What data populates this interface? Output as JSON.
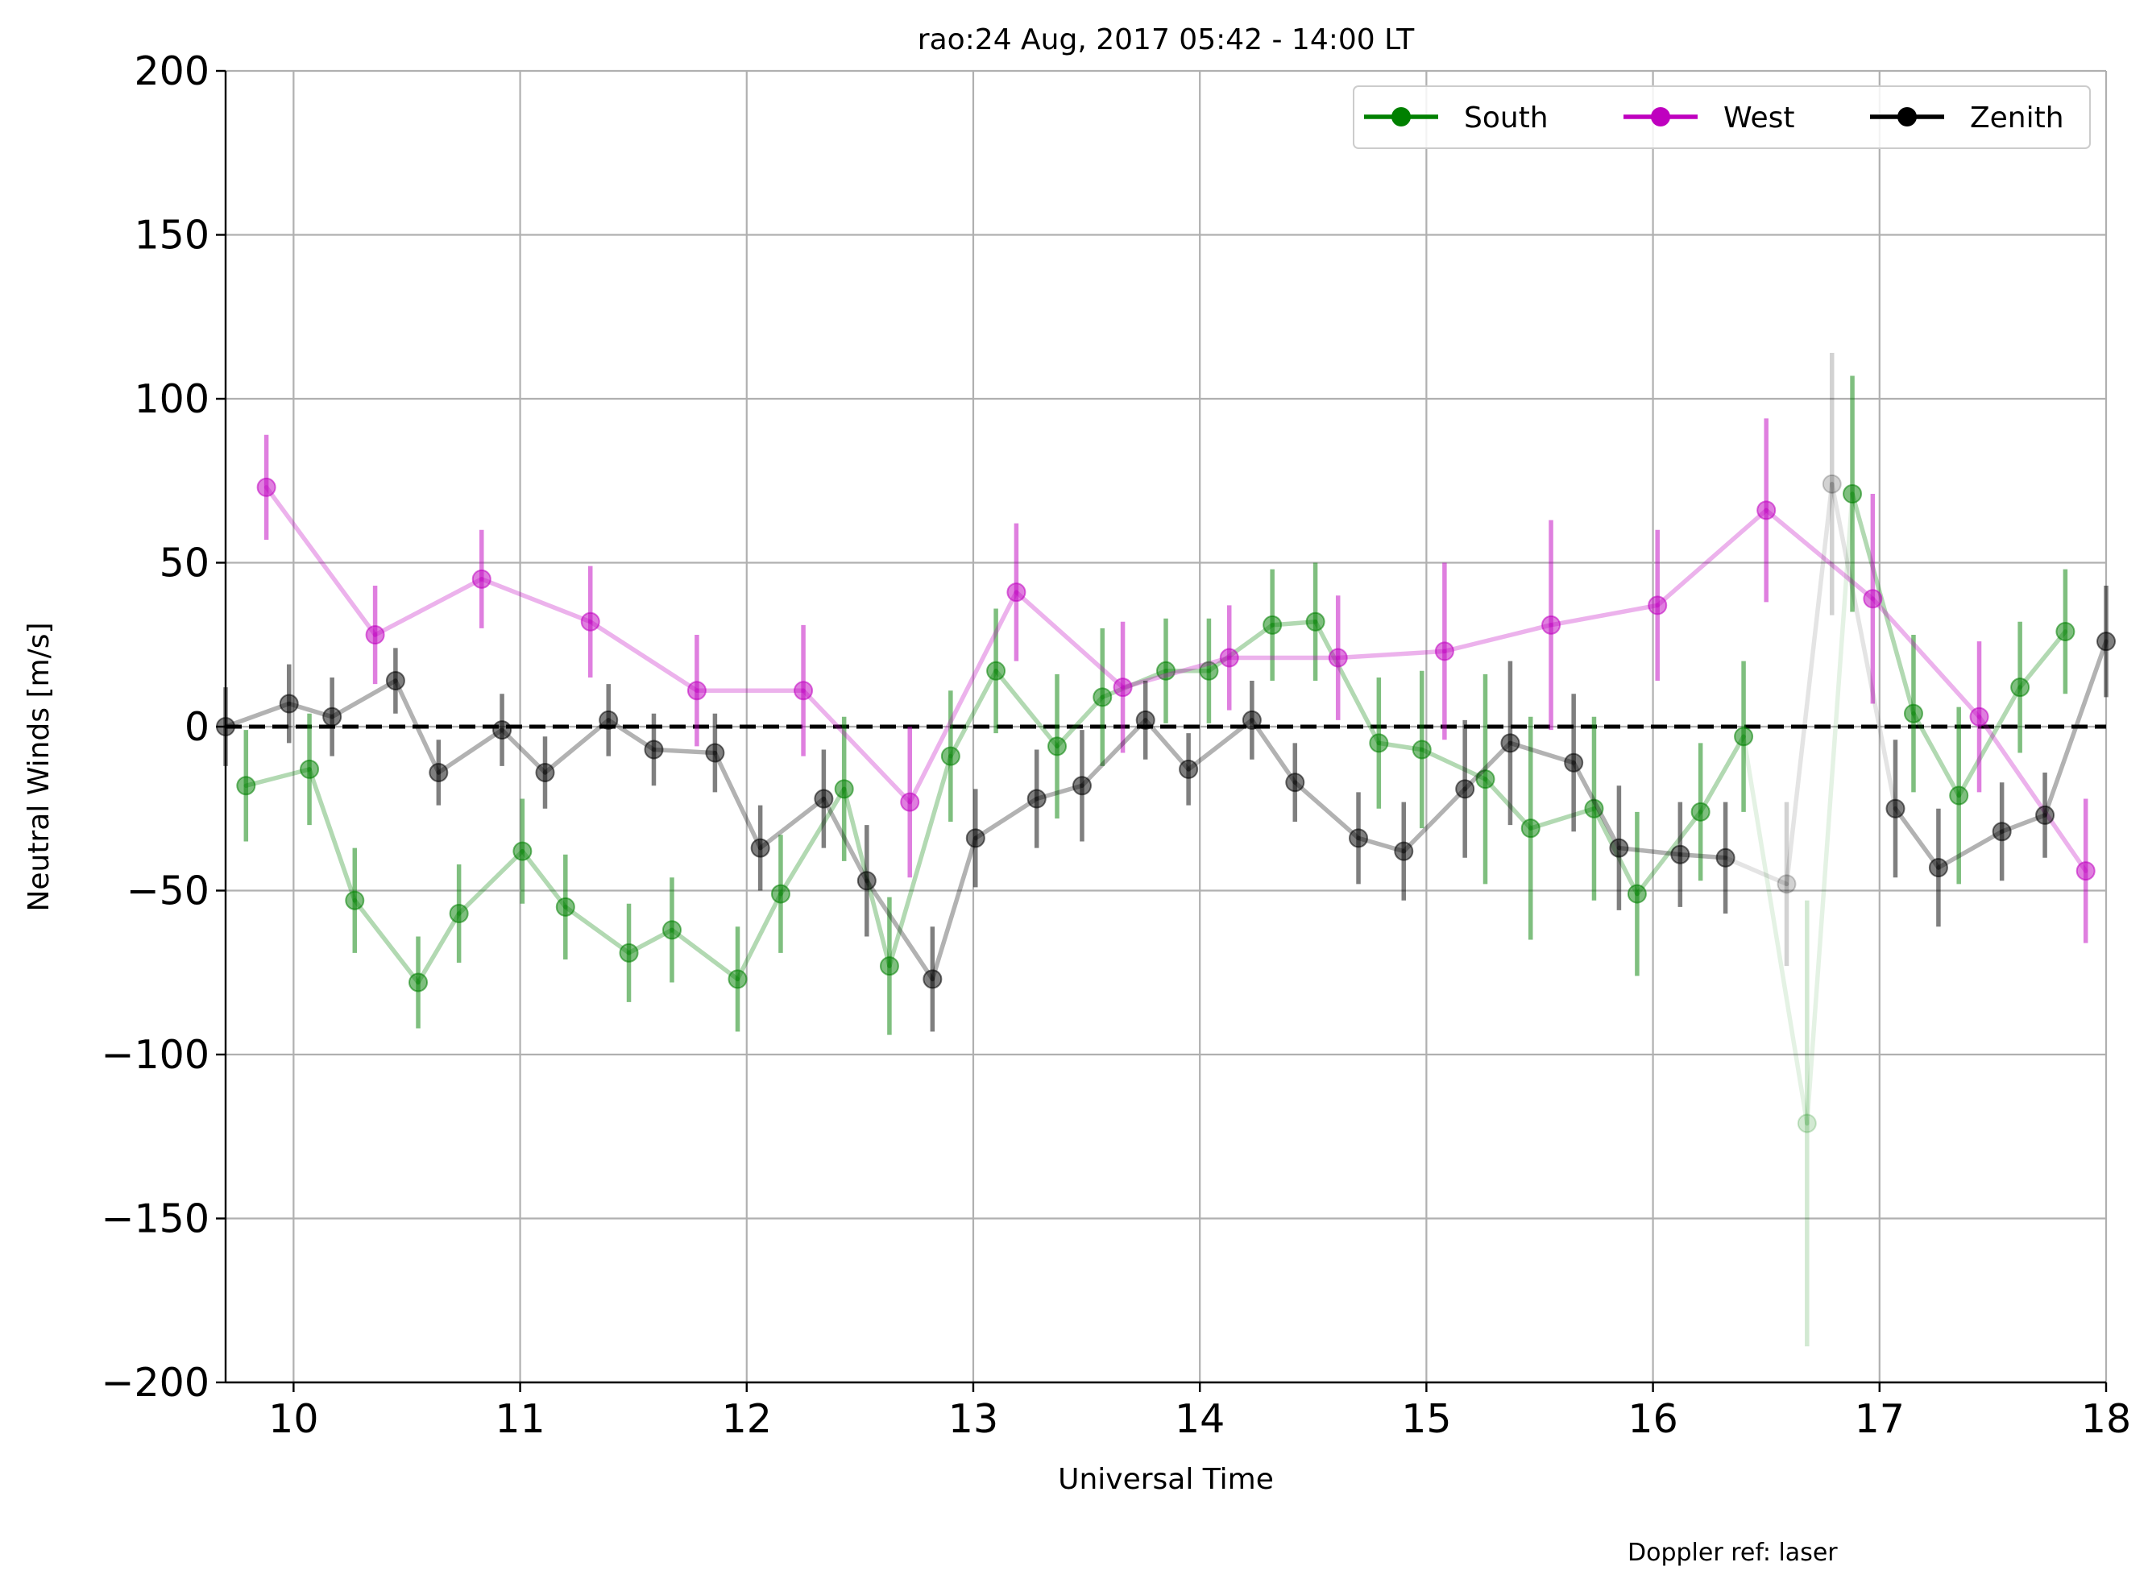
{
  "chart_data": {
    "type": "line",
    "title": "rao:24 Aug, 2017 05:42 - 14:00 LT",
    "xlabel": "Universal Time",
    "ylabel": "Neutral Winds [m/s]",
    "xlim": [
      9.7,
      18.0
    ],
    "ylim": [
      -200,
      200
    ],
    "xticks": [
      10,
      11,
      12,
      13,
      14,
      15,
      16,
      17,
      18
    ],
    "yticks": [
      -200,
      -150,
      -100,
      -50,
      0,
      50,
      100,
      150,
      200
    ],
    "ytick_labels": [
      "−200",
      "−150",
      "−100",
      "−50",
      "0",
      "50",
      "100",
      "150",
      "200"
    ],
    "grid": true,
    "legend_position": "top-right",
    "reference_line": {
      "y": 0,
      "style": "dashed",
      "color": "#000000"
    },
    "footnote": "Doppler ref: laser",
    "series": [
      {
        "name": "South",
        "color": "#008000",
        "points": [
          {
            "x": 9.79,
            "y": -18,
            "err": 17,
            "alpha": 1
          },
          {
            "x": 10.07,
            "y": -13,
            "err": 17,
            "alpha": 1
          },
          {
            "x": 10.27,
            "y": -53,
            "err": 16,
            "alpha": 1
          },
          {
            "x": 10.55,
            "y": -78,
            "err": 14,
            "alpha": 1
          },
          {
            "x": 10.73,
            "y": -57,
            "err": 15,
            "alpha": 1
          },
          {
            "x": 11.01,
            "y": -38,
            "err": 16,
            "alpha": 1
          },
          {
            "x": 11.2,
            "y": -55,
            "err": 16,
            "alpha": 1
          },
          {
            "x": 11.48,
            "y": -69,
            "err": 15,
            "alpha": 1
          },
          {
            "x": 11.67,
            "y": -62,
            "err": 16,
            "alpha": 1
          },
          {
            "x": 11.96,
            "y": -77,
            "err": 16,
            "alpha": 1
          },
          {
            "x": 12.15,
            "y": -51,
            "err": 18,
            "alpha": 1
          },
          {
            "x": 12.43,
            "y": -19,
            "err": 22,
            "alpha": 1
          },
          {
            "x": 12.63,
            "y": -73,
            "err": 21,
            "alpha": 1
          },
          {
            "x": 12.9,
            "y": -9,
            "err": 20,
            "alpha": 1
          },
          {
            "x": 13.1,
            "y": 17,
            "err": 19,
            "alpha": 1
          },
          {
            "x": 13.37,
            "y": -6,
            "err": 22,
            "alpha": 1
          },
          {
            "x": 13.57,
            "y": 9,
            "err": 21,
            "alpha": 1
          },
          {
            "x": 13.85,
            "y": 17,
            "err": 16,
            "alpha": 1
          },
          {
            "x": 14.04,
            "y": 17,
            "err": 16,
            "alpha": 1
          },
          {
            "x": 14.32,
            "y": 31,
            "err": 17,
            "alpha": 1
          },
          {
            "x": 14.51,
            "y": 32,
            "err": 18,
            "alpha": 1
          },
          {
            "x": 14.79,
            "y": -5,
            "err": 20,
            "alpha": 1
          },
          {
            "x": 14.98,
            "y": -7,
            "err": 24,
            "alpha": 1
          },
          {
            "x": 15.26,
            "y": -16,
            "err": 32,
            "alpha": 1
          },
          {
            "x": 15.46,
            "y": -31,
            "err": 34,
            "alpha": 1
          },
          {
            "x": 15.74,
            "y": -25,
            "err": 28,
            "alpha": 1
          },
          {
            "x": 15.93,
            "y": -51,
            "err": 25,
            "alpha": 1
          },
          {
            "x": 16.21,
            "y": -26,
            "err": 21,
            "alpha": 1
          },
          {
            "x": 16.4,
            "y": -3,
            "err": 23,
            "alpha": 1
          },
          {
            "x": 16.68,
            "y": -121,
            "err": 68,
            "alpha": 0.35
          },
          {
            "x": 16.88,
            "y": 71,
            "err": 36,
            "alpha": 1
          },
          {
            "x": 17.15,
            "y": 4,
            "err": 24,
            "alpha": 1
          },
          {
            "x": 17.35,
            "y": -21,
            "err": 27,
            "alpha": 1
          },
          {
            "x": 17.62,
            "y": 12,
            "err": 20,
            "alpha": 1
          },
          {
            "x": 17.82,
            "y": 29,
            "err": 19,
            "alpha": 1
          }
        ]
      },
      {
        "name": "West",
        "color": "#bf00bf",
        "points": [
          {
            "x": 9.88,
            "y": 73,
            "err": 16,
            "alpha": 1
          },
          {
            "x": 10.36,
            "y": 28,
            "err": 15,
            "alpha": 1
          },
          {
            "x": 10.83,
            "y": 45,
            "err": 15,
            "alpha": 1
          },
          {
            "x": 11.31,
            "y": 32,
            "err": 17,
            "alpha": 1
          },
          {
            "x": 11.78,
            "y": 11,
            "err": 17,
            "alpha": 1
          },
          {
            "x": 12.25,
            "y": 11,
            "err": 20,
            "alpha": 1
          },
          {
            "x": 12.72,
            "y": -23,
            "err": 23,
            "alpha": 1
          },
          {
            "x": 13.19,
            "y": 41,
            "err": 21,
            "alpha": 1
          },
          {
            "x": 13.66,
            "y": 12,
            "err": 20,
            "alpha": 1
          },
          {
            "x": 14.13,
            "y": 21,
            "err": 16,
            "alpha": 1
          },
          {
            "x": 14.61,
            "y": 21,
            "err": 19,
            "alpha": 1
          },
          {
            "x": 15.08,
            "y": 23,
            "err": 27,
            "alpha": 1
          },
          {
            "x": 15.55,
            "y": 31,
            "err": 32,
            "alpha": 1
          },
          {
            "x": 16.02,
            "y": 37,
            "err": 23,
            "alpha": 1
          },
          {
            "x": 16.5,
            "y": 66,
            "err": 28,
            "alpha": 1
          },
          {
            "x": 16.97,
            "y": 39,
            "err": 32,
            "alpha": 1
          },
          {
            "x": 17.44,
            "y": 3,
            "err": 23,
            "alpha": 1
          },
          {
            "x": 17.91,
            "y": -44,
            "err": 22,
            "alpha": 1
          }
        ]
      },
      {
        "name": "Zenith",
        "color": "#000000",
        "points": [
          {
            "x": 9.7,
            "y": 0,
            "err": 12,
            "alpha": 1
          },
          {
            "x": 9.98,
            "y": 7,
            "err": 12,
            "alpha": 1
          },
          {
            "x": 10.17,
            "y": 3,
            "err": 12,
            "alpha": 1
          },
          {
            "x": 10.45,
            "y": 14,
            "err": 10,
            "alpha": 1
          },
          {
            "x": 10.64,
            "y": -14,
            "err": 10,
            "alpha": 1
          },
          {
            "x": 10.92,
            "y": -1,
            "err": 11,
            "alpha": 1
          },
          {
            "x": 11.11,
            "y": -14,
            "err": 11,
            "alpha": 1
          },
          {
            "x": 11.39,
            "y": 2,
            "err": 11,
            "alpha": 1
          },
          {
            "x": 11.59,
            "y": -7,
            "err": 11,
            "alpha": 1
          },
          {
            "x": 11.86,
            "y": -8,
            "err": 12,
            "alpha": 1
          },
          {
            "x": 12.06,
            "y": -37,
            "err": 13,
            "alpha": 1
          },
          {
            "x": 12.34,
            "y": -22,
            "err": 15,
            "alpha": 1
          },
          {
            "x": 12.53,
            "y": -47,
            "err": 17,
            "alpha": 1
          },
          {
            "x": 12.82,
            "y": -77,
            "err": 16,
            "alpha": 1
          },
          {
            "x": 13.01,
            "y": -34,
            "err": 15,
            "alpha": 1
          },
          {
            "x": 13.28,
            "y": -22,
            "err": 15,
            "alpha": 1
          },
          {
            "x": 13.48,
            "y": -18,
            "err": 17,
            "alpha": 1
          },
          {
            "x": 13.76,
            "y": 2,
            "err": 12,
            "alpha": 1
          },
          {
            "x": 13.95,
            "y": -13,
            "err": 11,
            "alpha": 1
          },
          {
            "x": 14.23,
            "y": 2,
            "err": 12,
            "alpha": 1
          },
          {
            "x": 14.42,
            "y": -17,
            "err": 12,
            "alpha": 1
          },
          {
            "x": 14.7,
            "y": -34,
            "err": 14,
            "alpha": 1
          },
          {
            "x": 14.9,
            "y": -38,
            "err": 15,
            "alpha": 1
          },
          {
            "x": 15.17,
            "y": -19,
            "err": 21,
            "alpha": 1
          },
          {
            "x": 15.37,
            "y": -5,
            "err": 25,
            "alpha": 1
          },
          {
            "x": 15.65,
            "y": -11,
            "err": 21,
            "alpha": 1
          },
          {
            "x": 15.85,
            "y": -37,
            "err": 19,
            "alpha": 1
          },
          {
            "x": 16.12,
            "y": -39,
            "err": 16,
            "alpha": 1
          },
          {
            "x": 16.32,
            "y": -40,
            "err": 17,
            "alpha": 1
          },
          {
            "x": 16.59,
            "y": -48,
            "err": 25,
            "alpha": 0.35
          },
          {
            "x": 16.79,
            "y": 74,
            "err": 40,
            "alpha": 0.35
          },
          {
            "x": 17.07,
            "y": -25,
            "err": 21,
            "alpha": 1
          },
          {
            "x": 17.26,
            "y": -43,
            "err": 18,
            "alpha": 1
          },
          {
            "x": 17.54,
            "y": -32,
            "err": 15,
            "alpha": 1
          },
          {
            "x": 17.73,
            "y": -27,
            "err": 13,
            "alpha": 1
          },
          {
            "x": 18.0,
            "y": 26,
            "err": 17,
            "alpha": 1
          }
        ]
      }
    ]
  }
}
